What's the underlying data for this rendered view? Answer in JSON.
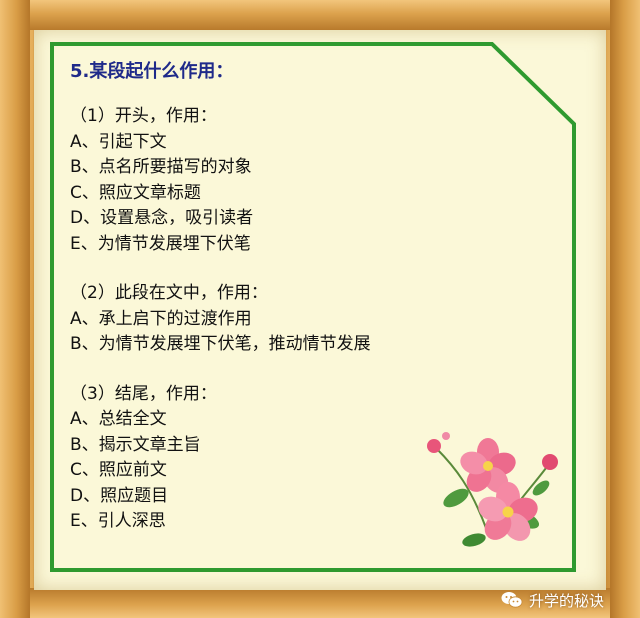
{
  "heading": "5.某段起什么作用：",
  "sections": [
    {
      "title": "（1）开头，作用：",
      "items": [
        "A、引起下文",
        "B、点名所要描写的对象",
        "C、照应文章标题",
        "D、设置悬念，吸引读者",
        "E、为情节发展埋下伏笔"
      ]
    },
    {
      "title": "（2）此段在文中，作用：",
      "items": [
        "A、承上启下的过渡作用",
        "B、为情节发展埋下伏笔，推动情节发展"
      ]
    },
    {
      "title": "（3）结尾，作用：",
      "items": [
        "A、总结全文",
        "B、揭示文章主旨",
        "C、照应前文",
        "D、照应题目",
        "E、引人深思"
      ]
    }
  ],
  "watermark": "升学的秘诀",
  "colors": {
    "heading": "#1f2a8a",
    "border": "#2f9a2f",
    "paper": "#fbf8d8",
    "frame": "#d89a3f"
  },
  "icons": [
    "wechat-icon",
    "flower-decoration"
  ]
}
